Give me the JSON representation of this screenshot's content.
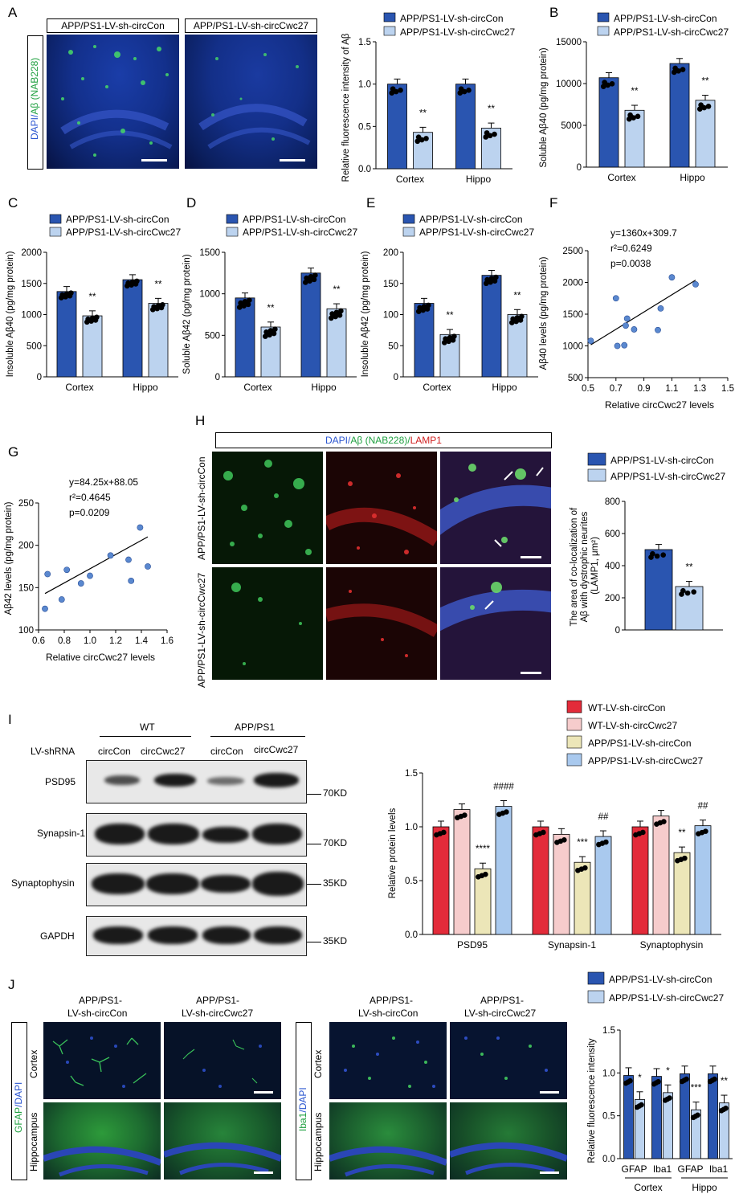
{
  "panels": {
    "A": "A",
    "B": "B",
    "C": "C",
    "D": "D",
    "E": "E",
    "F": "F",
    "G": "G",
    "H": "H",
    "I": "I",
    "J": "J"
  },
  "colors": {
    "con": "#2a55b0",
    "cwc": "#bcd3ef",
    "wt_con": "#e32b3a",
    "wt_cwc": "#f6cccc",
    "app_con": "#ece6b8",
    "app_cwc": "#a9c9ee"
  },
  "legend_app": {
    "con": "APP/PS1-LV-sh-circCon",
    "cwc": "APP/PS1-LV-sh-circCwc27"
  },
  "legend_wt": {
    "wt_con": "WT-LV-sh-circCon",
    "wt_cwc": "WT-LV-sh-circCwc27",
    "app_con": "APP/PS1-LV-sh-circCon",
    "app_cwc": "APP/PS1-LV-sh-circCwc27"
  },
  "panelA": {
    "img_con": "APP/PS1-LV-sh-circCon",
    "img_cwc": "APP/PS1-LV-sh-circCwc27",
    "stain_dapi": "DAPI/",
    "stain_ab": "Aβ (NAB228)"
  },
  "panelH": {
    "stain_dapi": "DAPI/",
    "stain_ab": "Aβ (NAB228)",
    "stain_sep": "/",
    "stain_lamp": "LAMP1",
    "row_con": "APP/PS1-LV-sh-circCon",
    "row_cwc": "APP/PS1-LV-sh-circCwc27"
  },
  "panelI": {
    "group_wt": "WT",
    "group_app": "APP/PS1",
    "shrna_label": "LV-shRNA",
    "lanes": [
      "circCon",
      "circCwc27",
      "circCon",
      "circCwc27"
    ],
    "proteins": [
      "PSD95",
      "Synapsin-1",
      "Synaptophysin",
      "GAPDH"
    ],
    "weights": [
      "70KD",
      "70KD",
      "35KD",
      "35KD"
    ]
  },
  "panelJ": {
    "col_con_1": "APP/PS1-",
    "col_con_2": "LV-sh-circCon",
    "col_cwc_1": "APP/PS1-",
    "col_cwc_2": "LV-sh-circCwc27",
    "row_cortex": "Cortex",
    "row_hippo": "Hippocampus",
    "gfap_stain": "GFAP",
    "iba_stain": "Iba1",
    "dapi_stain": "/DAPI"
  },
  "chart_data": [
    {
      "id": "A",
      "type": "bar",
      "categories": [
        "Cortex",
        "Hippo"
      ],
      "ylabel": "Relative fluorescence intensity of Aβ",
      "ylim": [
        0,
        1.5
      ],
      "yticks": [
        "0.0",
        "0.5",
        "1.0",
        "1.5"
      ],
      "series": [
        {
          "name": "APP/PS1-LV-sh-circCon",
          "values": [
            1.0,
            1.0
          ]
        },
        {
          "name": "APP/PS1-LV-sh-circCwc27",
          "values": [
            0.43,
            0.48
          ]
        }
      ],
      "sig": [
        "**",
        "**"
      ]
    },
    {
      "id": "B",
      "type": "bar",
      "categories": [
        "Cortex",
        "Hippo"
      ],
      "ylabel": "Soluble Aβ40 (pg/mg protein)",
      "ylim": [
        0,
        15000
      ],
      "yticks": [
        "0",
        "5000",
        "10000",
        "15000"
      ],
      "series": [
        {
          "name": "APP/PS1-LV-sh-circCon",
          "values": [
            10700,
            12400
          ]
        },
        {
          "name": "APP/PS1-LV-sh-circCwc27",
          "values": [
            6800,
            8000
          ]
        }
      ],
      "sig": [
        "**",
        "**"
      ]
    },
    {
      "id": "C",
      "type": "bar",
      "categories": [
        "Cortex",
        "Hippo"
      ],
      "ylabel": "Insoluble Aβ40 (pg/mg protein)",
      "ylim": [
        0,
        2000
      ],
      "yticks": [
        "0",
        "500",
        "1000",
        "1500",
        "2000"
      ],
      "series": [
        {
          "name": "APP/PS1-LV-sh-circCon",
          "values": [
            1370,
            1560
          ]
        },
        {
          "name": "APP/PS1-LV-sh-circCwc27",
          "values": [
            980,
            1180
          ]
        }
      ],
      "sig": [
        "**",
        "**"
      ]
    },
    {
      "id": "D",
      "type": "bar",
      "categories": [
        "Cortex",
        "Hippo"
      ],
      "ylabel": "Soluble Aβ42 (pg/mg protein)",
      "ylim": [
        0,
        1500
      ],
      "yticks": [
        "0",
        "500",
        "1000",
        "1500"
      ],
      "series": [
        {
          "name": "APP/PS1-LV-sh-circCon",
          "values": [
            950,
            1250
          ]
        },
        {
          "name": "APP/PS1-LV-sh-circCwc27",
          "values": [
            600,
            820
          ]
        }
      ],
      "sig": [
        "**",
        "**"
      ]
    },
    {
      "id": "E",
      "type": "bar",
      "categories": [
        "Cortex",
        "Hippo"
      ],
      "ylabel": "Insoluble Aβ42 (pg/mg protein)",
      "ylim": [
        0,
        200
      ],
      "yticks": [
        "0",
        "50",
        "100",
        "150",
        "200"
      ],
      "series": [
        {
          "name": "APP/PS1-LV-sh-circCon",
          "values": [
            118,
            163
          ]
        },
        {
          "name": "APP/PS1-LV-sh-circCwc27",
          "values": [
            68,
            100
          ]
        }
      ],
      "sig": [
        "**",
        "**"
      ]
    },
    {
      "id": "F",
      "type": "scatter",
      "xlabel": "Relative circCwc27 levels",
      "ylabel": "Aβ40 levels (pg/mg protein)",
      "xlim": [
        0.5,
        1.5
      ],
      "ylim": [
        500,
        2500
      ],
      "xticks": [
        "0.5",
        "0.7",
        "0.9",
        "1.1",
        "1.3",
        "1.5"
      ],
      "yticks": [
        "500",
        "1000",
        "1500",
        "2000",
        "2500"
      ],
      "annotations": [
        "y=1360x+309.7",
        "r²=0.6249",
        "p=0.0038"
      ],
      "points": [
        [
          0.52,
          1080
        ],
        [
          0.7,
          1750
        ],
        [
          0.71,
          1000
        ],
        [
          0.76,
          1010
        ],
        [
          0.77,
          1320
        ],
        [
          0.78,
          1430
        ],
        [
          0.83,
          1260
        ],
        [
          1.0,
          1250
        ],
        [
          1.02,
          1590
        ],
        [
          1.1,
          2080
        ],
        [
          1.27,
          1970
        ]
      ],
      "line": [
        [
          0.52,
          1017
        ],
        [
          1.27,
          2037
        ]
      ]
    },
    {
      "id": "G",
      "type": "scatter",
      "xlabel": "Relative circCwc27 levels",
      "ylabel": "Aβ42 levels (pg/mg protein)",
      "xlim": [
        0.6,
        1.6
      ],
      "ylim": [
        100,
        250
      ],
      "xticks": [
        "0.6",
        "0.8",
        "1.0",
        "1.2",
        "1.4",
        "1.6"
      ],
      "yticks": [
        "100",
        "150",
        "200",
        "250"
      ],
      "annotations": [
        "y=84.25x+88.05",
        "r²=0.4645",
        "p=0.0209"
      ],
      "points": [
        [
          0.65,
          125
        ],
        [
          0.67,
          166
        ],
        [
          0.78,
          136
        ],
        [
          0.82,
          171
        ],
        [
          0.93,
          155
        ],
        [
          1.0,
          164
        ],
        [
          1.16,
          188
        ],
        [
          1.3,
          183
        ],
        [
          1.32,
          158
        ],
        [
          1.39,
          221
        ],
        [
          1.45,
          175
        ]
      ],
      "line": [
        [
          0.65,
          143
        ],
        [
          1.45,
          210
        ]
      ]
    },
    {
      "id": "H",
      "type": "bar",
      "categories": [
        ""
      ],
      "ylabel": "The area of co-localization of Aβ with dystrophic neurites (LAMP1, μm²)",
      "ylim": [
        0,
        800
      ],
      "yticks": [
        "0",
        "200",
        "400",
        "600",
        "800"
      ],
      "series": [
        {
          "name": "APP/PS1-LV-sh-circCon",
          "values": [
            500
          ]
        },
        {
          "name": "APP/PS1-LV-sh-circCwc27",
          "values": [
            270
          ]
        }
      ],
      "sig": [
        "**"
      ]
    },
    {
      "id": "I",
      "type": "bar",
      "categories": [
        "PSD95",
        "Synapsin-1",
        "Synaptophysin"
      ],
      "ylabel": "Relative protein levels",
      "ylim": [
        0,
        1.5
      ],
      "yticks": [
        "0.0",
        "0.5",
        "1.0",
        "1.5"
      ],
      "series": [
        {
          "name": "WT-LV-sh-circCon",
          "values": [
            1.0,
            1.0,
            1.0
          ]
        },
        {
          "name": "WT-LV-sh-circCwc27",
          "values": [
            1.16,
            0.93,
            1.1
          ]
        },
        {
          "name": "APP/PS1-LV-sh-circCon",
          "values": [
            0.61,
            0.67,
            0.76
          ]
        },
        {
          "name": "APP/PS1-LV-sh-circCwc27",
          "values": [
            1.19,
            0.91,
            1.01
          ]
        }
      ],
      "sig": [
        [
          "",
          "",
          "****",
          "####"
        ],
        [
          "",
          "",
          "***",
          "##"
        ],
        [
          "",
          "",
          "**",
          "##"
        ]
      ]
    },
    {
      "id": "J",
      "type": "bar",
      "categories": [
        "GFAP",
        "Iba1",
        "GFAP",
        "Iba1"
      ],
      "groups": [
        "Cortex",
        "Hippo"
      ],
      "ylabel": "Relative fluorescence intensity",
      "ylim": [
        0,
        1.5
      ],
      "yticks": [
        "0.0",
        "0.5",
        "1.0",
        "1.5"
      ],
      "series": [
        {
          "name": "APP/PS1-LV-sh-circCon",
          "values": [
            0.97,
            0.96,
            0.99,
            0.99
          ]
        },
        {
          "name": "APP/PS1-LV-sh-circCwc27",
          "values": [
            0.69,
            0.77,
            0.57,
            0.65
          ]
        }
      ],
      "sig": [
        "*",
        "*",
        "***",
        "**"
      ]
    }
  ]
}
